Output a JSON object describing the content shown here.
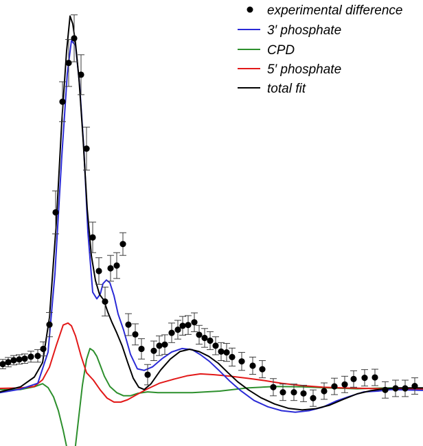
{
  "chart_data": {
    "type": "line",
    "title": "",
    "xlabel": "",
    "ylabel": "",
    "xlim": [
      0,
      616
    ],
    "ylim": [
      -0.15,
      1.05
    ],
    "grid": false,
    "legend_position": "top-right",
    "series": [
      {
        "name": "experimental difference",
        "kind": "scatter",
        "color": "#000000",
        "x": [
          4,
          12,
          20,
          28,
          36,
          45,
          55,
          63,
          72,
          81,
          91,
          100,
          108,
          118,
          126,
          135,
          144,
          153,
          161,
          170,
          179,
          187,
          197,
          206,
          215,
          224,
          232,
          240,
          250,
          259,
          266,
          274,
          283,
          290,
          298,
          306,
          314,
          322,
          330,
          338,
          352,
          368,
          382,
          398,
          412,
          428,
          442,
          456,
          472,
          487,
          502,
          515,
          531,
          546,
          561,
          576,
          590,
          604
        ],
        "y": [
          0.069,
          0.074,
          0.079,
          0.081,
          0.083,
          0.088,
          0.09,
          0.108,
          0.17,
          0.457,
          0.74,
          0.839,
          0.902,
          0.809,
          0.62,
          0.393,
          0.307,
          0.229,
          0.314,
          0.321,
          0.376,
          0.17,
          0.145,
          0.108,
          0.042,
          0.103,
          0.116,
          0.119,
          0.149,
          0.157,
          0.167,
          0.169,
          0.176,
          0.144,
          0.136,
          0.129,
          0.116,
          0.101,
          0.099,
          0.087,
          0.076,
          0.065,
          0.056,
          0.01,
          -0.003,
          -0.003,
          -0.006,
          -0.018,
          0.0,
          0.012,
          0.017,
          0.031,
          0.034,
          0.035,
          0.003,
          0.007,
          0.007,
          0.013
        ],
        "error": [
          0.012,
          0.012,
          0.012,
          0.012,
          0.012,
          0.014,
          0.016,
          0.018,
          0.031,
          0.055,
          0.051,
          0.06,
          0.06,
          0.051,
          0.055,
          0.039,
          0.034,
          0.037,
          0.033,
          0.033,
          0.029,
          0.028,
          0.027,
          0.026,
          0.026,
          0.025,
          0.025,
          0.025,
          0.025,
          0.024,
          0.024,
          0.024,
          0.024,
          0.024,
          0.024,
          0.023,
          0.023,
          0.023,
          0.023,
          0.023,
          0.023,
          0.022,
          0.022,
          0.022,
          0.021,
          0.021,
          0.021,
          0.021,
          0.021,
          0.021,
          0.021,
          0.021,
          0.021,
          0.021,
          0.021,
          0.021,
          0.021,
          0.021
        ]
      },
      {
        "name": "3′ phosphate",
        "kind": "line",
        "color": "#2a2ad6",
        "x": [
          0,
          30,
          55,
          70,
          80,
          90,
          98,
          104,
          110,
          116,
          122,
          128,
          135,
          141,
          146,
          150,
          155,
          160,
          166,
          172,
          180,
          190,
          200,
          210,
          222,
          236,
          250,
          265,
          280,
          292,
          305,
          320,
          335,
          350,
          370,
          390,
          410,
          430,
          450,
          470,
          490,
          510,
          530,
          550,
          570,
          590,
          616
        ],
        "y": [
          -0.004,
          0.005,
          0.02,
          0.1,
          0.3,
          0.6,
          0.812,
          0.896,
          0.884,
          0.781,
          0.623,
          0.407,
          0.253,
          0.236,
          0.248,
          0.275,
          0.284,
          0.277,
          0.244,
          0.197,
          0.156,
          0.094,
          0.057,
          0.053,
          0.062,
          0.083,
          0.1,
          0.109,
          0.106,
          0.093,
          0.076,
          0.051,
          0.025,
          0.002,
          -0.024,
          -0.04,
          -0.05,
          -0.054,
          -0.05,
          -0.041,
          -0.025,
          -0.013,
          -0.002,
          0.0,
          0.004,
          0.003,
          0.002
        ]
      },
      {
        "name": "CPD",
        "kind": "line",
        "color": "#2c8f2c",
        "x": [
          0,
          30,
          50,
          62,
          70,
          78,
          85,
          92,
          98,
          104,
          109,
          114,
          120,
          126,
          131,
          136,
          141,
          146,
          152,
          160,
          170,
          180,
          190,
          200,
          215,
          230,
          250,
          280,
          320,
          360,
          400,
          440,
          480,
          520,
          560,
          616
        ],
        "y": [
          0.004,
          0.004,
          0.011,
          0.019,
          0.009,
          -0.015,
          -0.05,
          -0.1,
          -0.15,
          -0.186,
          -0.154,
          -0.077,
          0.015,
          0.081,
          0.109,
          0.103,
          0.089,
          0.066,
          0.038,
          0.012,
          -0.004,
          -0.012,
          -0.012,
          -0.006,
          -0.002,
          -0.004,
          -0.004,
          -0.004,
          -0.0,
          0.008,
          0.012,
          0.011,
          0.008,
          0.006,
          0.008,
          0.008
        ]
      },
      {
        "name": "5′ phosphate",
        "kind": "line",
        "color": "#e21818",
        "x": [
          0,
          30,
          50,
          62,
          72,
          82,
          92,
          99,
          104,
          110,
          118,
          126,
          136,
          146,
          156,
          166,
          176,
          186,
          198,
          214,
          232,
          252,
          272,
          292,
          312,
          335,
          360,
          385,
          410,
          440,
          470,
          500,
          530,
          560,
          590,
          616
        ],
        "y": [
          0.007,
          0.008,
          0.012,
          0.029,
          0.061,
          0.117,
          0.169,
          0.174,
          0.167,
          0.141,
          0.09,
          0.047,
          0.028,
          0.003,
          -0.018,
          -0.028,
          -0.028,
          -0.022,
          -0.01,
          0.005,
          0.02,
          0.03,
          0.039,
          0.044,
          0.042,
          0.038,
          0.033,
          0.027,
          0.02,
          0.014,
          0.01,
          0.008,
          0.007,
          0.006,
          0.006,
          0.005
        ]
      },
      {
        "name": "total fit",
        "kind": "line",
        "color": "#000000",
        "x": [
          0,
          30,
          50,
          62,
          72,
          82,
          90,
          97,
          102,
          106,
          110,
          115,
          121,
          127,
          133,
          139,
          145,
          151,
          157,
          163,
          170,
          178,
          186,
          194,
          202,
          210,
          220,
          234,
          248,
          262,
          276,
          290,
          304,
          318,
          332,
          346,
          362,
          380,
          400,
          420,
          440,
          460,
          480,
          500,
          520,
          540,
          560,
          580,
          600,
          616
        ],
        "y": [
          -0.002,
          0.011,
          0.036,
          0.073,
          0.188,
          0.43,
          0.69,
          0.87,
          0.959,
          0.939,
          0.889,
          0.799,
          0.644,
          0.466,
          0.347,
          0.283,
          0.247,
          0.233,
          0.202,
          0.176,
          0.149,
          0.115,
          0.073,
          0.033,
          0.01,
          0.004,
          0.019,
          0.054,
          0.082,
          0.101,
          0.107,
          0.101,
          0.089,
          0.071,
          0.047,
          0.024,
          0.003,
          -0.017,
          -0.033,
          -0.044,
          -0.048,
          -0.045,
          -0.036,
          -0.021,
          -0.007,
          0.001,
          0.006,
          0.008,
          0.008,
          0.008
        ]
      }
    ]
  }
}
